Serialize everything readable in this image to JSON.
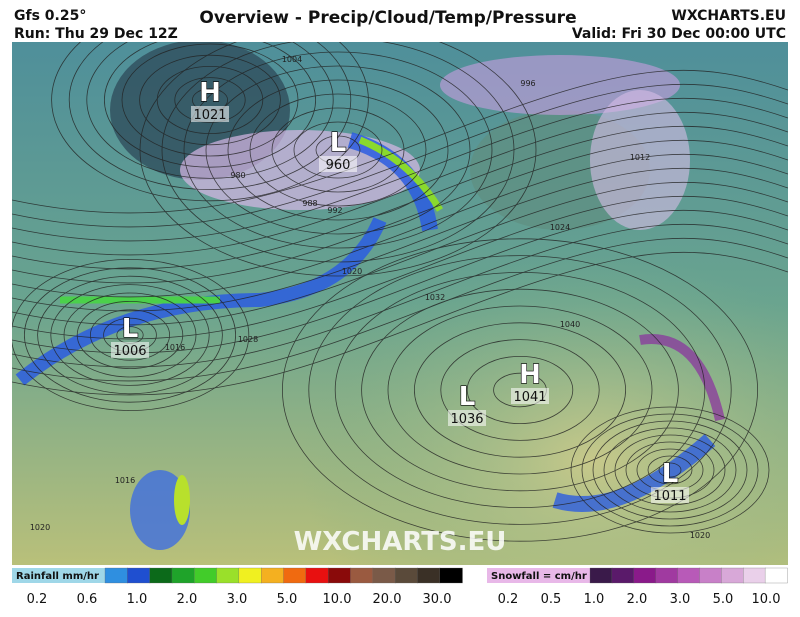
{
  "header": {
    "model": "Gfs 0.25°",
    "run": "Run: Thu 29 Dec 12Z",
    "title": "Overview - Precip/Cloud/Temp/Pressure",
    "site": "WXCHARTS.EU",
    "valid": "Valid: Fri 30 Dec 00:00 UTC"
  },
  "watermark": "WXCHARTS.EU",
  "centers": [
    {
      "letter": "H",
      "value": 1021
    },
    {
      "letter": "L",
      "value": 960
    },
    {
      "letter": "L",
      "value": 1006
    },
    {
      "letter": "L",
      "value": 1036
    },
    {
      "letter": "H",
      "value": 1041
    },
    {
      "letter": "L",
      "value": 1011
    }
  ],
  "isobar_labels": [
    1004,
    996,
    980,
    988,
    992,
    1012,
    1016,
    1020,
    1024,
    1028,
    1032,
    1040,
    1016,
    1020,
    1020
  ],
  "legend": {
    "rainfall": {
      "title": "Rainfall mm/hr",
      "labels": [
        "0.2",
        "0.6",
        "1.0",
        "2.0",
        "3.0",
        "5.0",
        "10.0",
        "20.0",
        "30.0"
      ],
      "colors": [
        "#2f8fe0",
        "#1f4fd0",
        "#0c6a1a",
        "#1fa32a",
        "#42cc2a",
        "#9ae02a",
        "#f0f020",
        "#f4b020",
        "#f06a10",
        "#e81010",
        "#8a0a0a",
        "#9a5a40",
        "#7a5a48",
        "#5a4a3a",
        "#3a3026",
        "#000000"
      ]
    },
    "snowfall": {
      "title": "Snowfall = cm/hr",
      "labels": [
        "0.2",
        "0.5",
        "1.0",
        "2.0",
        "3.0",
        "5.0",
        "10.0"
      ],
      "colors": [
        "#3a1a4a",
        "#5a1a6a",
        "#8a1a8a",
        "#a03aa0",
        "#b85ab8",
        "#c880c8",
        "#d8a8d8",
        "#ead0ea",
        "#ffffff"
      ]
    }
  }
}
